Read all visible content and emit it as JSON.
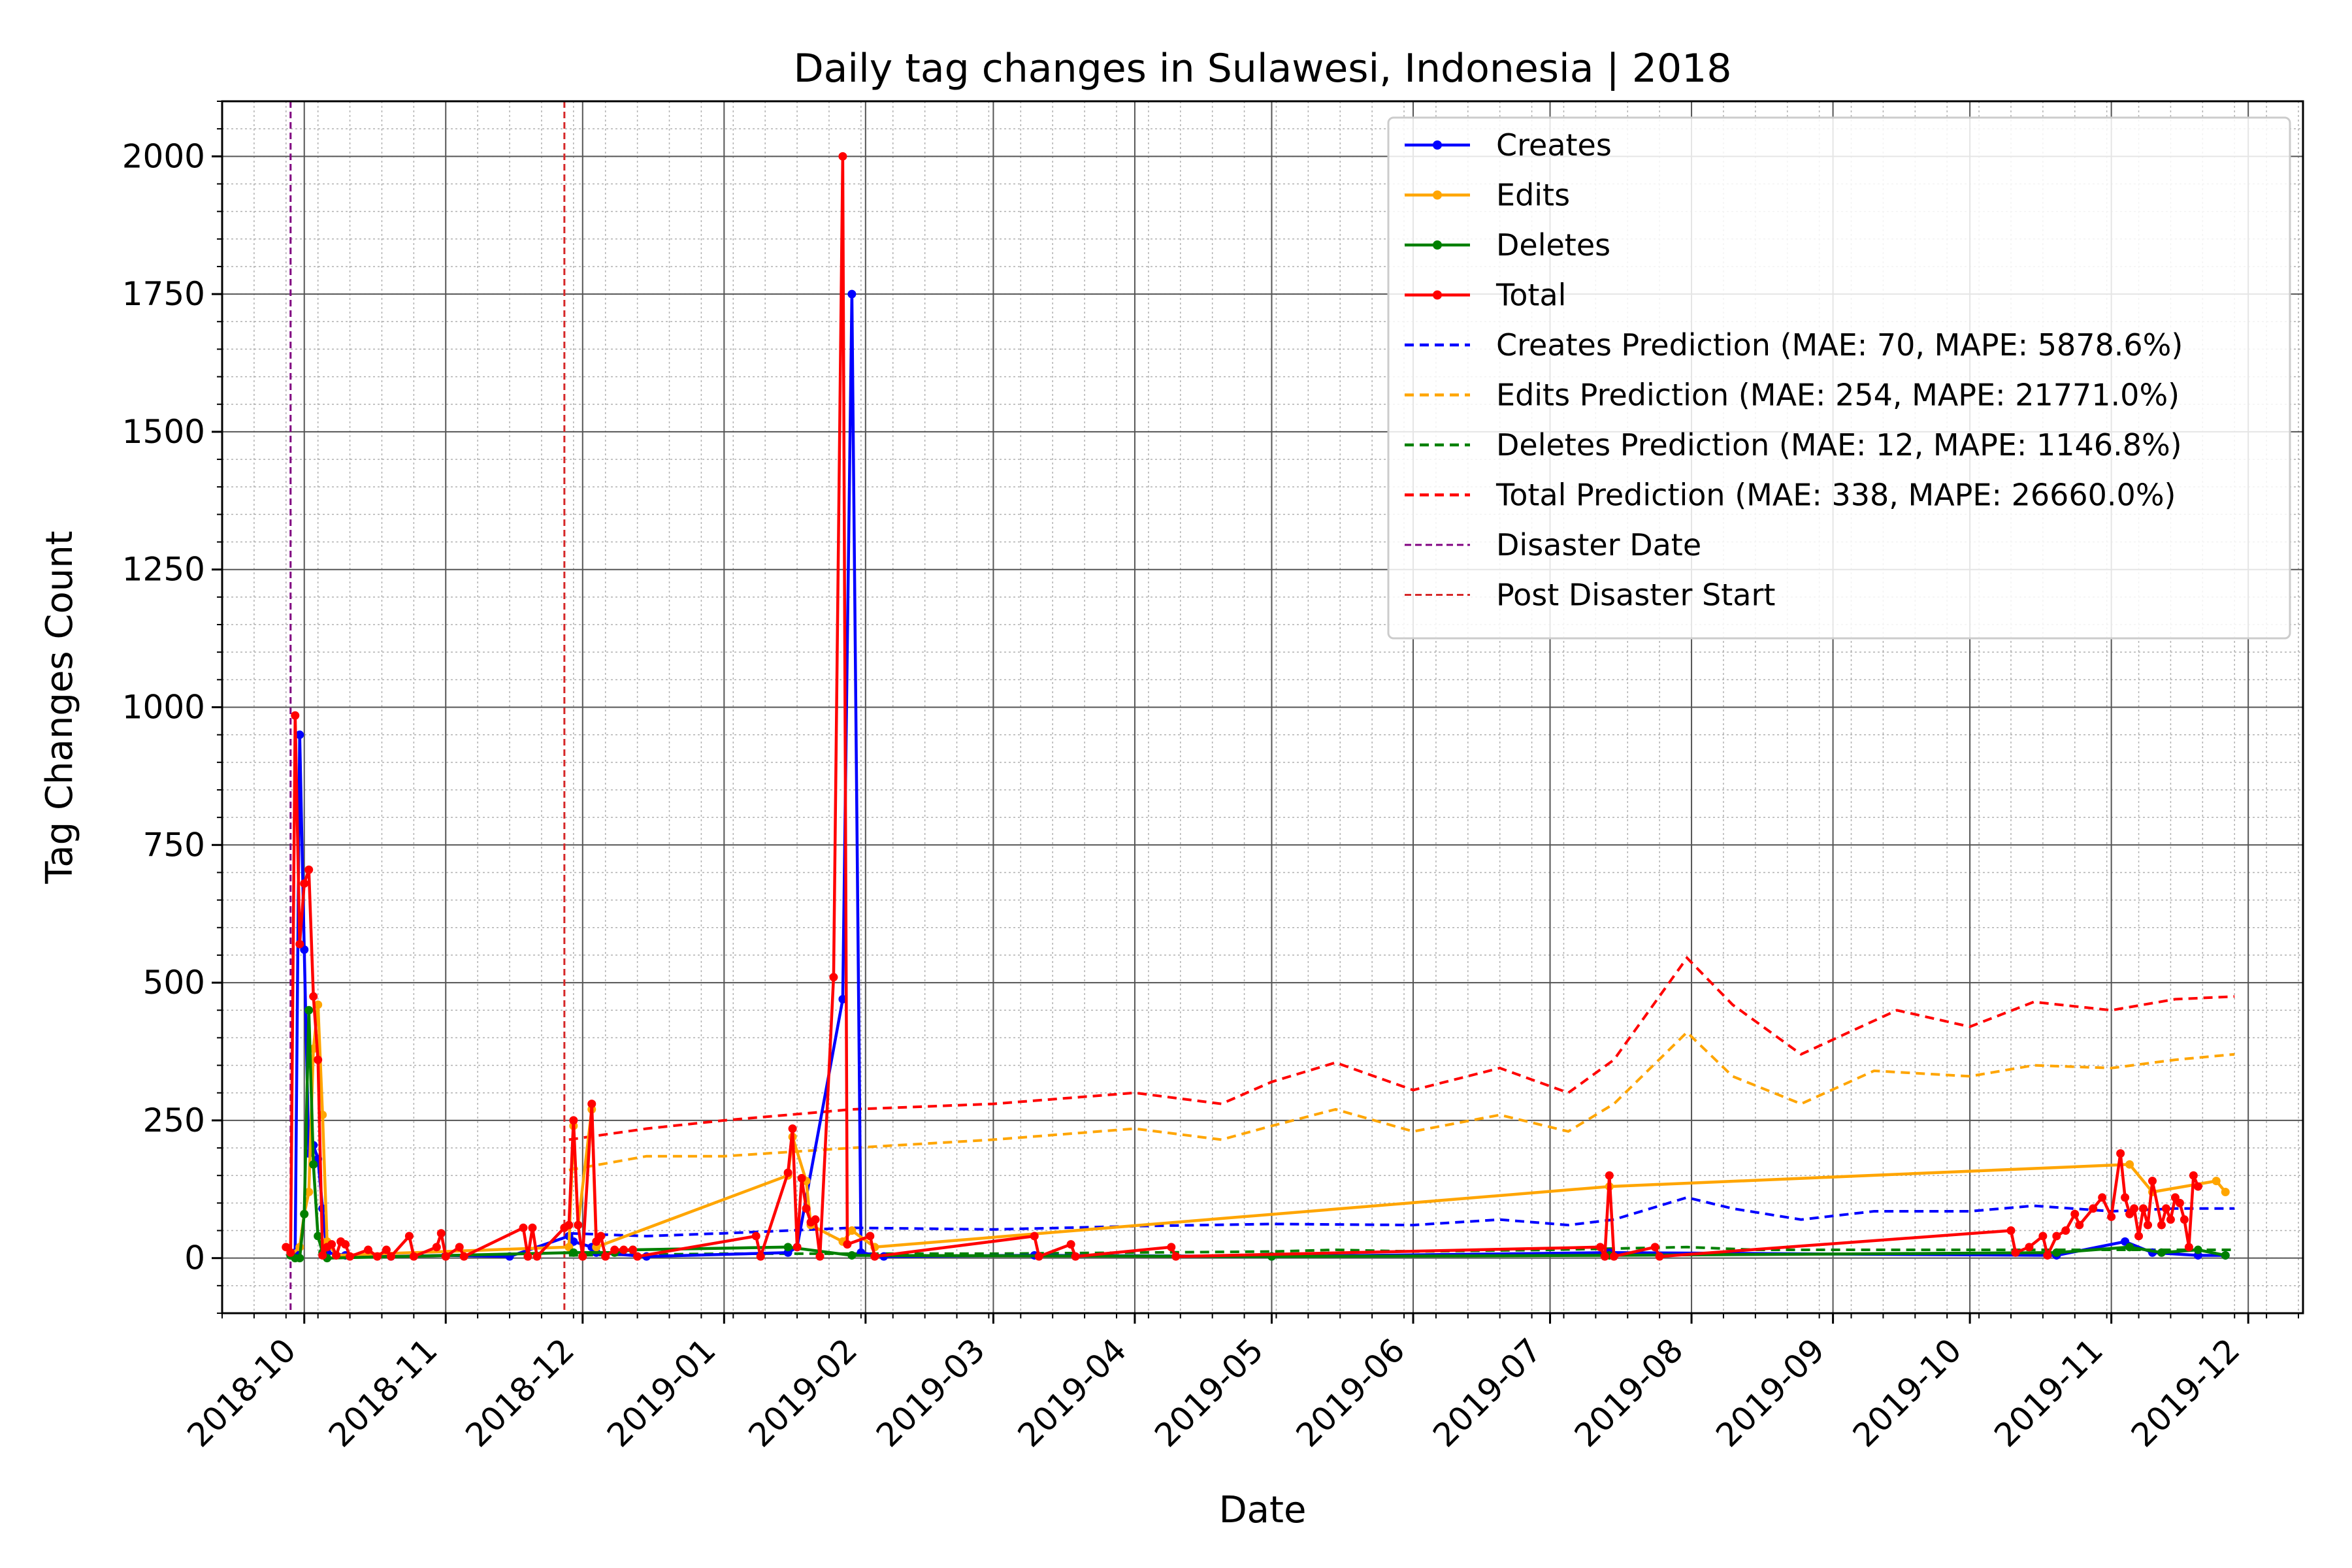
{
  "chart_data": {
    "type": "line",
    "title": "Daily tag changes in Sulawesi, Indonesia | 2018",
    "xlabel": "Date",
    "ylabel": "Tag Changes Count",
    "xlim": [
      "2018-09-13",
      "2019-12-13"
    ],
    "ylim": [
      -100,
      2100
    ],
    "yticks": [
      0,
      250,
      500,
      750,
      1000,
      1250,
      1500,
      1750,
      2000
    ],
    "xticks": [
      "2018-10",
      "2018-11",
      "2018-12",
      "2019-01",
      "2019-02",
      "2019-03",
      "2019-04",
      "2019-05",
      "2019-06",
      "2019-07",
      "2019-08",
      "2019-09",
      "2019-10",
      "2019-11",
      "2019-12"
    ],
    "grid": true,
    "legend_position": "upper-right",
    "colors": {
      "creates": "#0000ff",
      "edits": "#ffa500",
      "deletes": "#008000",
      "total": "#ff0000",
      "disaster": "#800080",
      "post_disaster": "#d62728"
    },
    "series": [
      {
        "name": "Creates",
        "style": "solid-marker",
        "color": "#0000ff",
        "points": [
          [
            "2018-09-28",
            5
          ],
          [
            "2018-09-29",
            10
          ],
          [
            "2018-09-30",
            950
          ],
          [
            "2018-10-01",
            560
          ],
          [
            "2018-10-02",
            190
          ],
          [
            "2018-10-03",
            205
          ],
          [
            "2018-10-04",
            180
          ],
          [
            "2018-10-05",
            90
          ],
          [
            "2018-10-06",
            10
          ],
          [
            "2018-10-10",
            5
          ],
          [
            "2018-10-20",
            3
          ],
          [
            "2018-11-01",
            5
          ],
          [
            "2018-11-15",
            3
          ],
          [
            "2018-11-28",
            40
          ],
          [
            "2018-11-29",
            30
          ],
          [
            "2018-12-03",
            20
          ],
          [
            "2018-12-04",
            10
          ],
          [
            "2018-12-15",
            3
          ],
          [
            "2019-01-15",
            10
          ],
          [
            "2019-01-17",
            20
          ],
          [
            "2019-01-27",
            470
          ],
          [
            "2019-01-29",
            1750
          ],
          [
            "2019-01-31",
            10
          ],
          [
            "2019-02-05",
            3
          ],
          [
            "2019-03-10",
            5
          ],
          [
            "2019-05-01",
            3
          ],
          [
            "2019-07-14",
            10
          ],
          [
            "2019-10-20",
            5
          ],
          [
            "2019-11-04",
            30
          ],
          [
            "2019-11-10",
            10
          ],
          [
            "2019-11-20",
            5
          ],
          [
            "2019-11-26",
            5
          ]
        ]
      },
      {
        "name": "Edits",
        "style": "solid-marker",
        "color": "#ffa500",
        "points": [
          [
            "2018-09-28",
            5
          ],
          [
            "2018-09-30",
            20
          ],
          [
            "2018-10-01",
            80
          ],
          [
            "2018-10-02",
            120
          ],
          [
            "2018-10-03",
            380
          ],
          [
            "2018-10-04",
            460
          ],
          [
            "2018-10-05",
            260
          ],
          [
            "2018-10-06",
            30
          ],
          [
            "2018-10-08",
            5
          ],
          [
            "2018-11-28",
            20
          ],
          [
            "2018-11-29",
            240
          ],
          [
            "2018-11-30",
            60
          ],
          [
            "2018-12-03",
            270
          ],
          [
            "2018-12-04",
            20
          ],
          [
            "2019-01-15",
            150
          ],
          [
            "2019-01-16",
            220
          ],
          [
            "2019-01-19",
            140
          ],
          [
            "2019-01-20",
            60
          ],
          [
            "2019-01-27",
            30
          ],
          [
            "2019-01-29",
            50
          ],
          [
            "2019-02-03",
            20
          ],
          [
            "2019-07-14",
            130
          ],
          [
            "2019-11-05",
            170
          ],
          [
            "2019-11-10",
            120
          ],
          [
            "2019-11-24",
            140
          ],
          [
            "2019-11-26",
            120
          ]
        ]
      },
      {
        "name": "Deletes",
        "style": "solid-marker",
        "color": "#008000",
        "points": [
          [
            "2018-09-28",
            5
          ],
          [
            "2018-09-29",
            0
          ],
          [
            "2018-09-30",
            0
          ],
          [
            "2018-10-01",
            80
          ],
          [
            "2018-10-02",
            450
          ],
          [
            "2018-10-03",
            170
          ],
          [
            "2018-10-04",
            40
          ],
          [
            "2018-10-05",
            10
          ],
          [
            "2018-10-06",
            0
          ],
          [
            "2018-11-29",
            10
          ],
          [
            "2018-12-08",
            10
          ],
          [
            "2018-12-12",
            15
          ],
          [
            "2019-01-15",
            20
          ],
          [
            "2019-01-29",
            5
          ],
          [
            "2019-05-01",
            3
          ],
          [
            "2019-07-14",
            5
          ],
          [
            "2019-10-20",
            10
          ],
          [
            "2019-11-05",
            20
          ],
          [
            "2019-11-12",
            10
          ],
          [
            "2019-11-20",
            15
          ],
          [
            "2019-11-26",
            5
          ]
        ]
      },
      {
        "name": "Total",
        "style": "solid-marker",
        "color": "#ff0000",
        "points": [
          [
            "2018-09-27",
            20
          ],
          [
            "2018-09-28",
            10
          ],
          [
            "2018-09-29",
            985
          ],
          [
            "2018-09-30",
            570
          ],
          [
            "2018-10-01",
            680
          ],
          [
            "2018-10-02",
            705
          ],
          [
            "2018-10-03",
            475
          ],
          [
            "2018-10-04",
            360
          ],
          [
            "2018-10-05",
            5
          ],
          [
            "2018-10-06",
            20
          ],
          [
            "2018-10-07",
            25
          ],
          [
            "2018-10-08",
            5
          ],
          [
            "2018-10-09",
            30
          ],
          [
            "2018-10-10",
            25
          ],
          [
            "2018-10-11",
            3
          ],
          [
            "2018-10-15",
            15
          ],
          [
            "2018-10-17",
            3
          ],
          [
            "2018-10-19",
            15
          ],
          [
            "2018-10-20",
            3
          ],
          [
            "2018-10-24",
            40
          ],
          [
            "2018-10-25",
            3
          ],
          [
            "2018-10-30",
            20
          ],
          [
            "2018-10-31",
            45
          ],
          [
            "2018-11-01",
            3
          ],
          [
            "2018-11-04",
            20
          ],
          [
            "2018-11-05",
            3
          ],
          [
            "2018-11-18",
            55
          ],
          [
            "2018-11-19",
            3
          ],
          [
            "2018-11-20",
            55
          ],
          [
            "2018-11-21",
            3
          ],
          [
            "2018-11-27",
            55
          ],
          [
            "2018-11-28",
            60
          ],
          [
            "2018-11-29",
            250
          ],
          [
            "2018-11-30",
            60
          ],
          [
            "2018-12-01",
            3
          ],
          [
            "2018-12-03",
            280
          ],
          [
            "2018-12-04",
            30
          ],
          [
            "2018-12-05",
            40
          ],
          [
            "2018-12-06",
            3
          ],
          [
            "2018-12-08",
            15
          ],
          [
            "2018-12-10",
            15
          ],
          [
            "2018-12-12",
            15
          ],
          [
            "2018-12-13",
            3
          ],
          [
            "2019-01-08",
            40
          ],
          [
            "2019-01-09",
            3
          ],
          [
            "2019-01-15",
            155
          ],
          [
            "2019-01-16",
            235
          ],
          [
            "2019-01-17",
            20
          ],
          [
            "2019-01-18",
            145
          ],
          [
            "2019-01-19",
            90
          ],
          [
            "2019-01-20",
            65
          ],
          [
            "2019-01-21",
            70
          ],
          [
            "2019-01-22",
            3
          ],
          [
            "2019-01-25",
            510
          ],
          [
            "2019-01-27",
            2000
          ],
          [
            "2019-01-28",
            25
          ],
          [
            "2019-02-02",
            40
          ],
          [
            "2019-02-03",
            3
          ],
          [
            "2019-03-10",
            40
          ],
          [
            "2019-03-11",
            3
          ],
          [
            "2019-03-18",
            25
          ],
          [
            "2019-03-19",
            3
          ],
          [
            "2019-04-09",
            20
          ],
          [
            "2019-04-10",
            3
          ],
          [
            "2019-07-12",
            20
          ],
          [
            "2019-07-13",
            3
          ],
          [
            "2019-07-14",
            150
          ],
          [
            "2019-07-15",
            3
          ],
          [
            "2019-07-24",
            20
          ],
          [
            "2019-07-25",
            3
          ],
          [
            "2019-10-10",
            50
          ],
          [
            "2019-10-11",
            10
          ],
          [
            "2019-10-14",
            20
          ],
          [
            "2019-10-17",
            40
          ],
          [
            "2019-10-18",
            5
          ],
          [
            "2019-10-20",
            40
          ],
          [
            "2019-10-22",
            50
          ],
          [
            "2019-10-24",
            80
          ],
          [
            "2019-10-25",
            60
          ],
          [
            "2019-10-28",
            90
          ],
          [
            "2019-10-30",
            110
          ],
          [
            "2019-11-01",
            75
          ],
          [
            "2019-11-03",
            190
          ],
          [
            "2019-11-04",
            110
          ],
          [
            "2019-11-05",
            80
          ],
          [
            "2019-11-06",
            90
          ],
          [
            "2019-11-07",
            40
          ],
          [
            "2019-11-08",
            90
          ],
          [
            "2019-11-09",
            60
          ],
          [
            "2019-11-10",
            140
          ],
          [
            "2019-11-12",
            60
          ],
          [
            "2019-11-13",
            90
          ],
          [
            "2019-11-14",
            70
          ],
          [
            "2019-11-15",
            110
          ],
          [
            "2019-11-16",
            100
          ],
          [
            "2019-11-17",
            70
          ],
          [
            "2019-11-18",
            20
          ],
          [
            "2019-11-19",
            150
          ],
          [
            "2019-11-20",
            130
          ]
        ]
      },
      {
        "name": "Creates Prediction (MAE: 70, MAPE: 5878.6%)",
        "style": "dashed",
        "color": "#0000ff",
        "points": [
          [
            "2018-11-28",
            45
          ],
          [
            "2018-12-15",
            40
          ],
          [
            "2019-01-01",
            45
          ],
          [
            "2019-01-29",
            55
          ],
          [
            "2019-03-01",
            52
          ],
          [
            "2019-04-01",
            58
          ],
          [
            "2019-05-01",
            62
          ],
          [
            "2019-06-01",
            60
          ],
          [
            "2019-06-20",
            70
          ],
          [
            "2019-07-05",
            60
          ],
          [
            "2019-07-15",
            70
          ],
          [
            "2019-07-31",
            110
          ],
          [
            "2019-08-10",
            90
          ],
          [
            "2019-08-25",
            70
          ],
          [
            "2019-09-10",
            85
          ],
          [
            "2019-10-01",
            85
          ],
          [
            "2019-10-15",
            95
          ],
          [
            "2019-11-01",
            85
          ],
          [
            "2019-11-15",
            90
          ],
          [
            "2019-11-28",
            90
          ]
        ]
      },
      {
        "name": "Edits Prediction (MAE: 254, MAPE: 21771.0%)",
        "style": "dashed",
        "color": "#ffa500",
        "points": [
          [
            "2018-11-28",
            160
          ],
          [
            "2018-12-15",
            185
          ],
          [
            "2019-01-01",
            185
          ],
          [
            "2019-01-29",
            200
          ],
          [
            "2019-03-01",
            215
          ],
          [
            "2019-04-01",
            235
          ],
          [
            "2019-04-20",
            215
          ],
          [
            "2019-05-01",
            240
          ],
          [
            "2019-05-15",
            270
          ],
          [
            "2019-06-01",
            230
          ],
          [
            "2019-06-20",
            260
          ],
          [
            "2019-07-05",
            230
          ],
          [
            "2019-07-15",
            280
          ],
          [
            "2019-07-31",
            410
          ],
          [
            "2019-08-10",
            330
          ],
          [
            "2019-08-25",
            280
          ],
          [
            "2019-09-10",
            340
          ],
          [
            "2019-10-01",
            330
          ],
          [
            "2019-10-15",
            350
          ],
          [
            "2019-11-01",
            345
          ],
          [
            "2019-11-15",
            360
          ],
          [
            "2019-11-28",
            370
          ]
        ]
      },
      {
        "name": "Deletes Prediction (MAE: 12, MAPE: 1146.8%)",
        "style": "dashed",
        "color": "#008000",
        "points": [
          [
            "2018-11-28",
            5
          ],
          [
            "2019-01-01",
            8
          ],
          [
            "2019-03-01",
            8
          ],
          [
            "2019-05-01",
            12
          ],
          [
            "2019-05-15",
            15
          ],
          [
            "2019-06-01",
            12
          ],
          [
            "2019-07-01",
            15
          ],
          [
            "2019-07-31",
            20
          ],
          [
            "2019-08-15",
            15
          ],
          [
            "2019-10-01",
            15
          ],
          [
            "2019-11-01",
            15
          ],
          [
            "2019-11-28",
            15
          ]
        ]
      },
      {
        "name": "Total Prediction (MAE: 338, MAPE: 26660.0%)",
        "style": "dashed",
        "color": "#ff0000",
        "points": [
          [
            "2018-11-28",
            215
          ],
          [
            "2018-12-15",
            235
          ],
          [
            "2019-01-01",
            250
          ],
          [
            "2019-01-29",
            270
          ],
          [
            "2019-03-01",
            280
          ],
          [
            "2019-04-01",
            300
          ],
          [
            "2019-04-20",
            280
          ],
          [
            "2019-05-01",
            320
          ],
          [
            "2019-05-15",
            355
          ],
          [
            "2019-06-01",
            305
          ],
          [
            "2019-06-20",
            345
          ],
          [
            "2019-07-05",
            300
          ],
          [
            "2019-07-15",
            360
          ],
          [
            "2019-07-31",
            545
          ],
          [
            "2019-08-10",
            460
          ],
          [
            "2019-08-25",
            370
          ],
          [
            "2019-09-15",
            450
          ],
          [
            "2019-10-01",
            420
          ],
          [
            "2019-10-15",
            465
          ],
          [
            "2019-11-01",
            450
          ],
          [
            "2019-11-15",
            470
          ],
          [
            "2019-11-28",
            475
          ]
        ]
      }
    ],
    "vlines": [
      {
        "name": "Disaster Date",
        "date": "2018-09-28",
        "color": "#800080"
      },
      {
        "name": "Post Disaster Start",
        "date": "2018-11-27",
        "color": "#d62728"
      }
    ]
  }
}
